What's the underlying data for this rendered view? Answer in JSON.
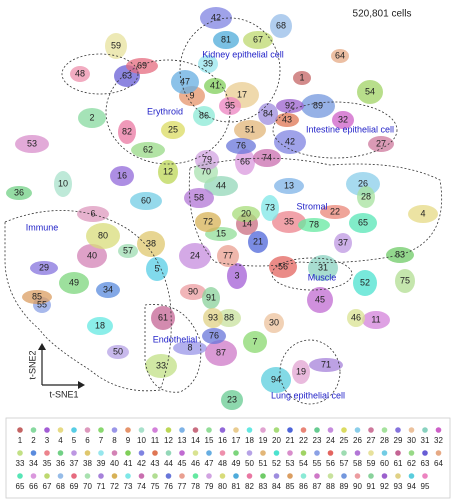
{
  "header": {
    "cell_count": "520,801 cells"
  },
  "regions": [
    "Kidney epithelial cell",
    "Erythroid",
    "Intestine epithelial cell",
    "Immune",
    "Stromal",
    "Muscle",
    "Endothelial",
    "Lung epithelial cell"
  ],
  "axes": {
    "x": "t-SNE1",
    "y": "t-SNE2"
  },
  "clusters": [
    "1",
    "2",
    "3",
    "4",
    "5",
    "6",
    "7",
    "8",
    "9",
    "10",
    "11",
    "12",
    "13",
    "14",
    "15",
    "16",
    "17",
    "18",
    "19",
    "20",
    "21",
    "22",
    "23",
    "24",
    "25",
    "26",
    "27",
    "28",
    "29",
    "30",
    "31",
    "32",
    "33",
    "34",
    "35",
    "36",
    "37",
    "38",
    "39",
    "40",
    "41",
    "42",
    "43",
    "44",
    "45",
    "46",
    "47",
    "48",
    "49",
    "50",
    "51",
    "52",
    "53",
    "54",
    "55",
    "56",
    "57",
    "58",
    "59",
    "60",
    "61",
    "62",
    "63",
    "64",
    "65",
    "66",
    "67",
    "68",
    "69",
    "70",
    "71",
    "72",
    "73",
    "74",
    "75",
    "76",
    "77",
    "78",
    "79",
    "80",
    "81",
    "82",
    "83",
    "84",
    "85",
    "86",
    "87",
    "88",
    "89",
    "90",
    "91",
    "92",
    "93",
    "94",
    "95"
  ]
}
